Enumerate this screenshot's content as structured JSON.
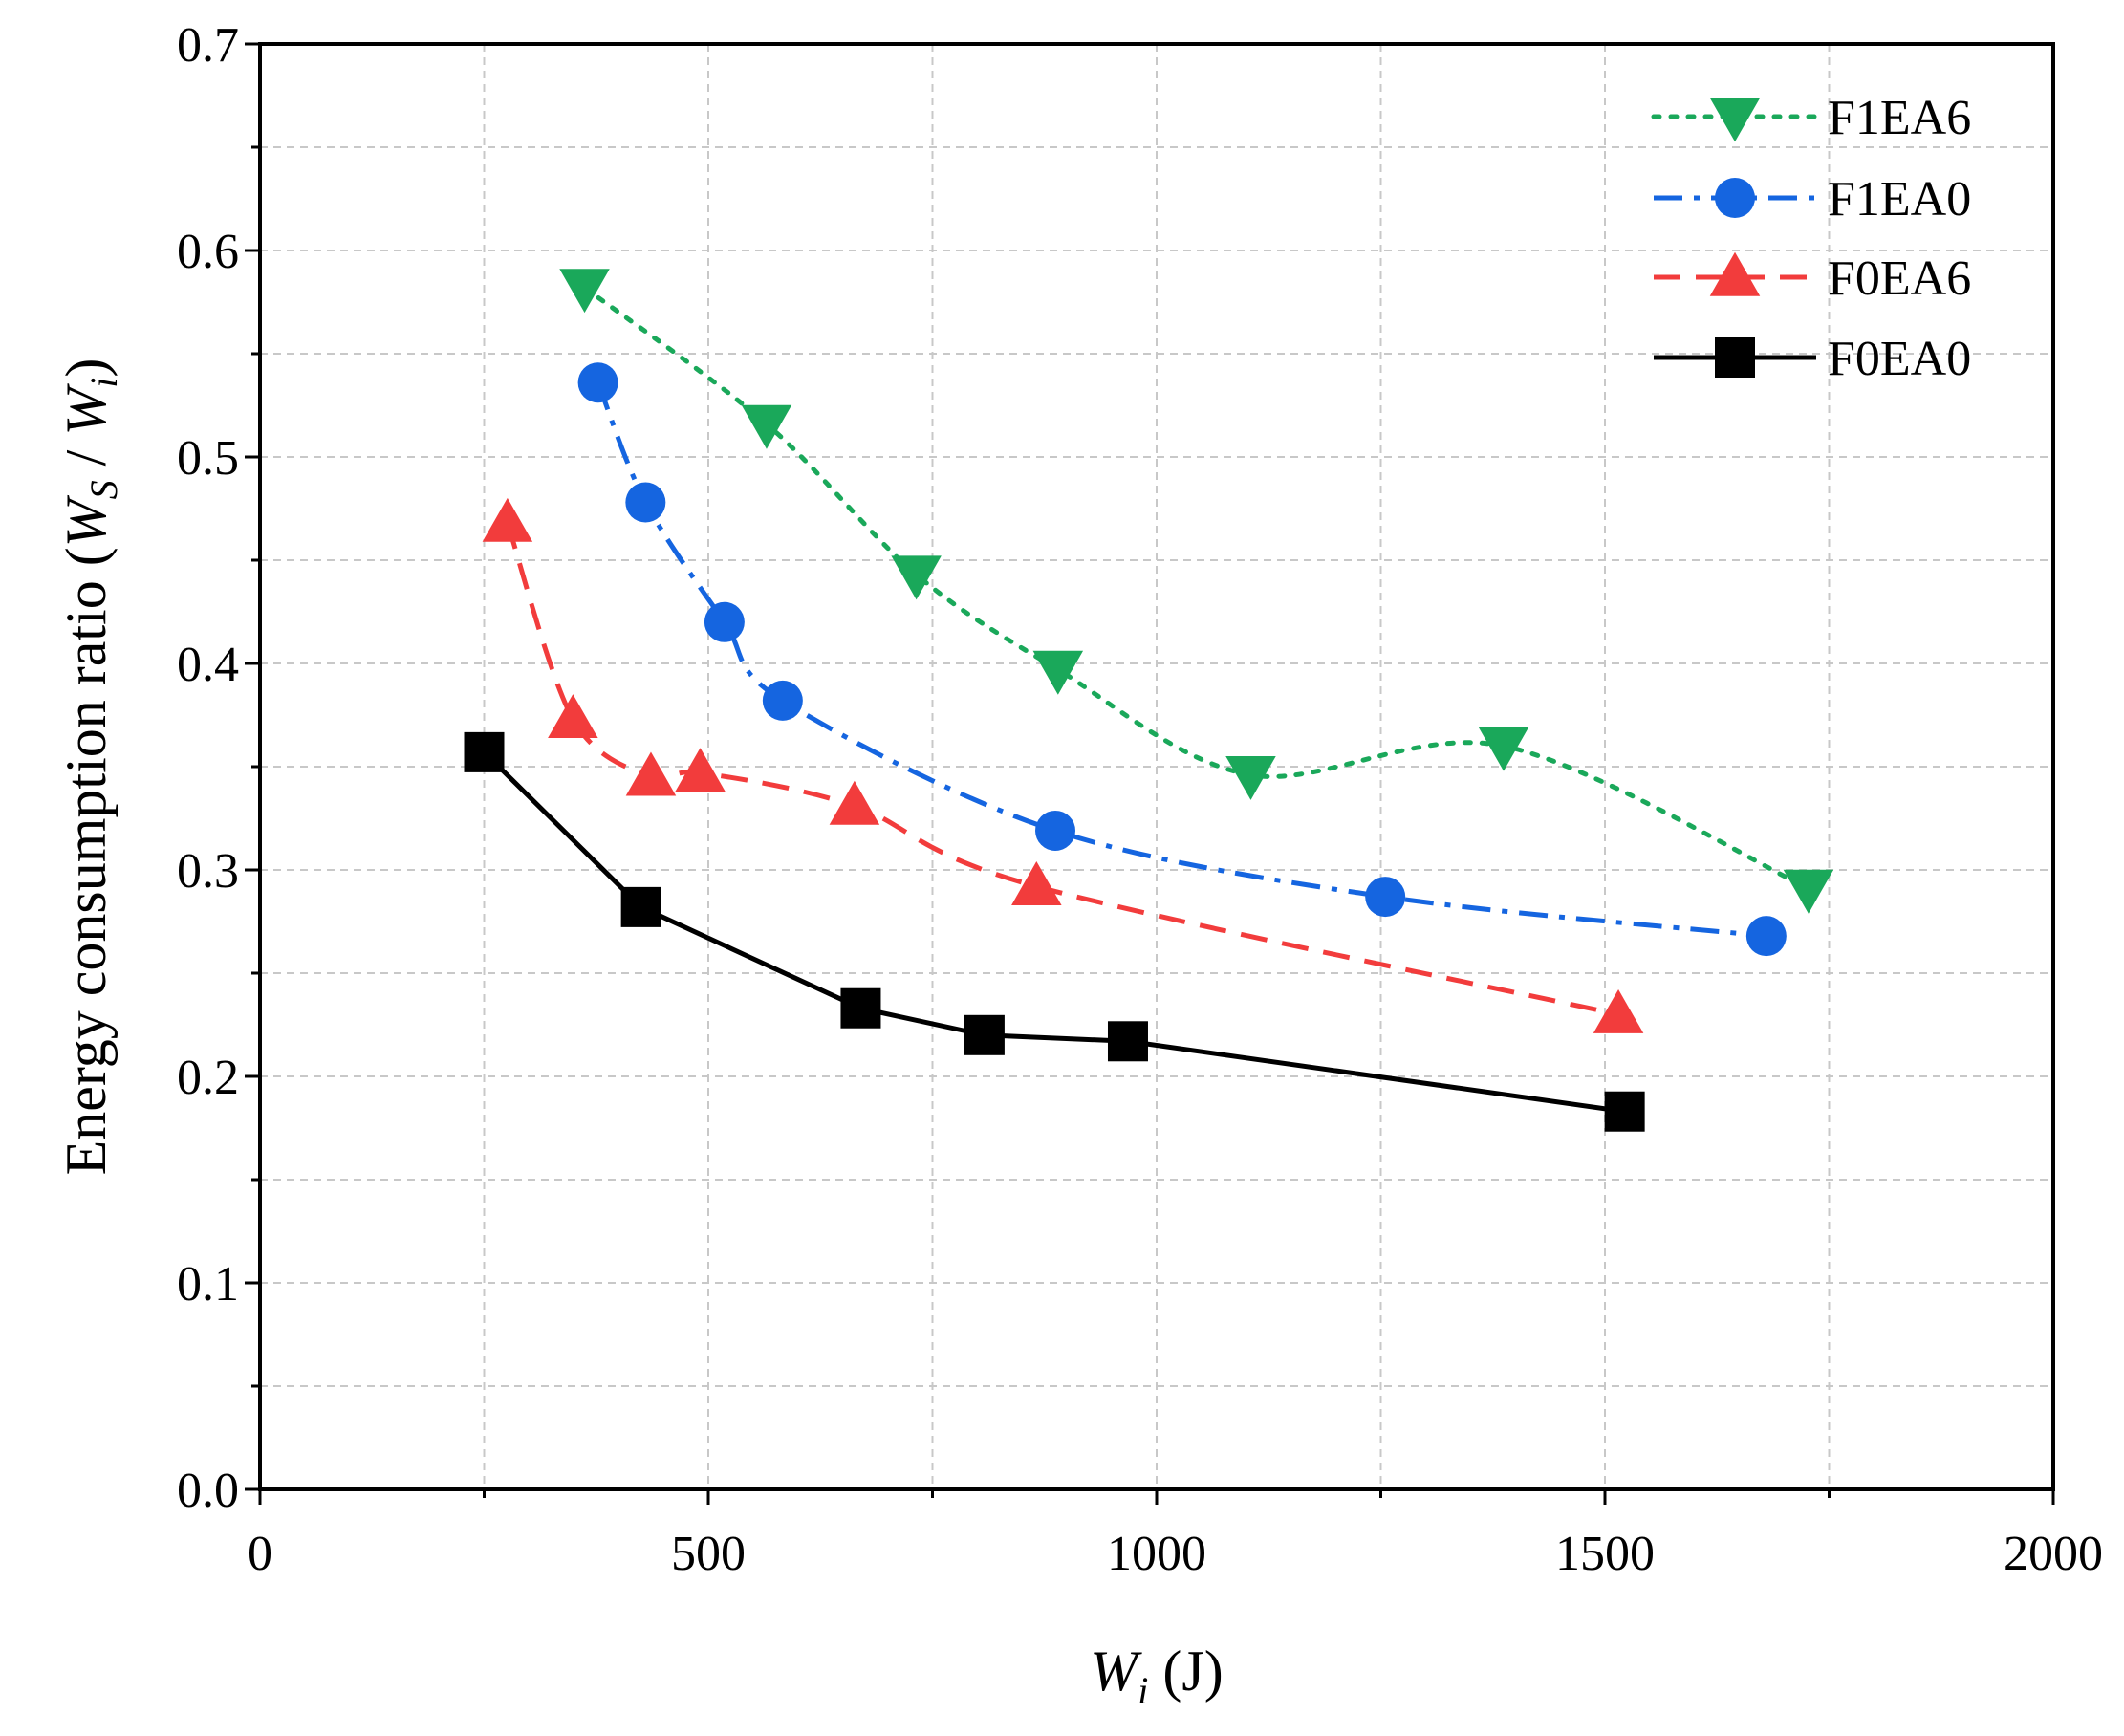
{
  "chart_data": {
    "type": "line",
    "xlabel": {
      "main": "W",
      "sub": "i",
      "unit": " (J)"
    },
    "ylabel": {
      "prefix": "Energy consumption ratio (",
      "num": "W",
      "num_sub": "S",
      "sep": " / ",
      "den": "W",
      "den_sub": "i",
      "suffix": ")"
    },
    "xlim": [
      0,
      2000
    ],
    "ylim": [
      0.0,
      0.7
    ],
    "x_ticks": [
      0,
      500,
      1000,
      1500,
      2000
    ],
    "x_tick_labels": [
      "0",
      "500",
      "1000",
      "1500",
      "2000"
    ],
    "y_ticks": [
      0.0,
      0.1,
      0.2,
      0.3,
      0.4,
      0.5,
      0.6,
      0.7
    ],
    "y_tick_labels": [
      "0.0",
      "0.1",
      "0.2",
      "0.3",
      "0.4",
      "0.5",
      "0.6",
      "0.7"
    ],
    "grid": true,
    "legend_position": "top-right",
    "series": [
      {
        "name": "F1EA6",
        "color": "#1aa85a",
        "marker": "triangle-down",
        "line_style": "dotted",
        "x": [
          362,
          565,
          732,
          890,
          1105,
          1387,
          1727
        ],
        "y": [
          0.582,
          0.516,
          0.443,
          0.397,
          0.346,
          0.36,
          0.291
        ]
      },
      {
        "name": "F1EA0",
        "color": "#1565e0",
        "marker": "circle",
        "line_style": "dashdot",
        "x": [
          377,
          430,
          518,
          583,
          887,
          1255,
          1680
        ],
        "y": [
          0.536,
          0.478,
          0.42,
          0.382,
          0.319,
          0.287,
          0.268
        ]
      },
      {
        "name": "F0EA6",
        "color": "#f23c3c",
        "marker": "triangle-up",
        "line_style": "dashed",
        "x": [
          276,
          349,
          436,
          491,
          663,
          866,
          1515
        ],
        "y": [
          0.468,
          0.373,
          0.345,
          0.347,
          0.331,
          0.292,
          0.23
        ]
      },
      {
        "name": "F0EA0",
        "color": "#000000",
        "marker": "square",
        "line_style": "solid",
        "x": [
          250,
          425,
          670,
          808,
          968,
          1522
        ],
        "y": [
          0.357,
          0.282,
          0.233,
          0.22,
          0.217,
          0.183
        ]
      }
    ]
  }
}
